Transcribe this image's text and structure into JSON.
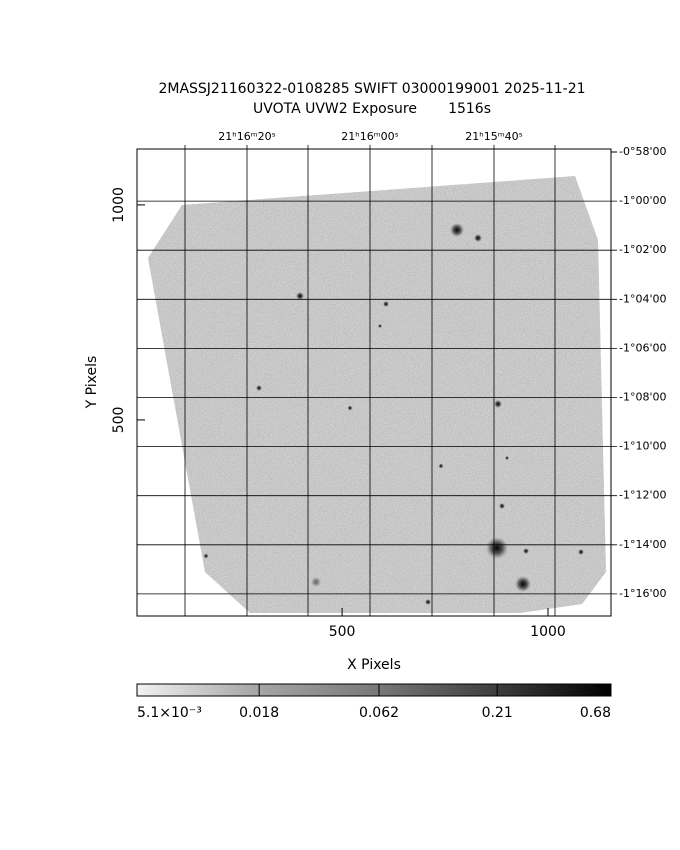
{
  "chart_data": {
    "type": "image",
    "title": "2MASSJ21160322-0108285 SWIFT 03000199001 2025-11-21",
    "subtitle": "UVOTA UVW2 Exposure       1516s",
    "xlabel": "X Pixels",
    "ylabel": "Y Pixels",
    "xlim": [
      2,
      1153
    ],
    "ylim": [
      44,
      1130
    ],
    "xticks": [
      500,
      1000
    ],
    "yticks": [
      500,
      1000
    ],
    "ra_labels": [
      "21ʰ16ᵐ20ˢ",
      "21ʰ16ᵐ00ˢ",
      "21ʰ15ᵐ40ˢ"
    ],
    "dec_labels": [
      "-0°58'00",
      "-1°00'00",
      "-1°02'00",
      "-1°04'00",
      "-1°06'00",
      "-1°08'00",
      "-1°10'00",
      "-1°12'00",
      "-1°14'00",
      "-1°16'00"
    ],
    "colorbar": {
      "log": true,
      "clim": [
        0.0051,
        0.68
      ],
      "ticks": [
        {
          "value": 0.0051,
          "label": "5.1×10⁻³"
        },
        0.018,
        0.062,
        0.21,
        0.68
      ]
    }
  }
}
